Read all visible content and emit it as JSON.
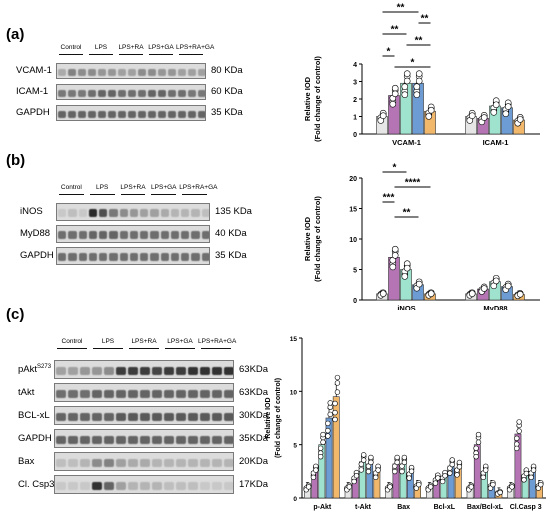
{
  "panels": {
    "a": {
      "label": "(a)",
      "conditions": [
        "Control",
        "LPS",
        "LPS+RA",
        "LPS+GA",
        "LPS+RA+GA"
      ],
      "blots": [
        {
          "name": "VCAM-1",
          "size": "80 KDa",
          "bands": [
            0.25,
            0.45,
            0.4,
            0.4,
            0.35,
            0.35,
            0.3,
            0.3,
            0.4,
            0.4,
            0.35,
            0.35,
            0.3,
            0.3,
            0.3
          ]
        },
        {
          "name": "ICAM-1",
          "size": "60 KDa",
          "bands": [
            0.5,
            0.5,
            0.5,
            0.55,
            0.6,
            0.6,
            0.55,
            0.55,
            0.55,
            0.6,
            0.6,
            0.55,
            0.55,
            0.5,
            0.5
          ]
        },
        {
          "name": "GAPDH",
          "size": "35 KDa",
          "bands": [
            0.6,
            0.6,
            0.6,
            0.6,
            0.6,
            0.6,
            0.6,
            0.6,
            0.6,
            0.6,
            0.6,
            0.6,
            0.6,
            0.6,
            0.6
          ]
        }
      ]
    },
    "b": {
      "label": "(b)",
      "conditions": [
        "Control",
        "LPS",
        "LPS+RA",
        "LPS+GA",
        "LPS+RA+GA"
      ],
      "blots": [
        {
          "name": "iNOS",
          "size": "135 KDa",
          "bands": [
            0.1,
            0.15,
            0.1,
            0.9,
            0.7,
            0.5,
            0.4,
            0.35,
            0.3,
            0.3,
            0.25,
            0.2,
            0.2,
            0.2,
            0.15
          ]
        },
        {
          "name": "MyD88",
          "size": "40 KDa",
          "bands": [
            0.55,
            0.55,
            0.55,
            0.6,
            0.6,
            0.6,
            0.55,
            0.55,
            0.55,
            0.55,
            0.55,
            0.55,
            0.55,
            0.55,
            0.55
          ]
        },
        {
          "name": "GAPDH",
          "size": "35 KDa",
          "bands": [
            0.55,
            0.55,
            0.55,
            0.55,
            0.55,
            0.55,
            0.55,
            0.55,
            0.55,
            0.55,
            0.55,
            0.55,
            0.55,
            0.55,
            0.55
          ]
        }
      ]
    },
    "c": {
      "label": "(c)",
      "conditions": [
        "Control",
        "LPS",
        "LPS+RA",
        "LPS+GA",
        "LPS+RA+GA"
      ],
      "blots": [
        {
          "name": "pAkt",
          "sup": "S273",
          "size": "63KDa",
          "bands": [
            0.3,
            0.3,
            0.35,
            0.35,
            0.4,
            0.8,
            0.8,
            0.8,
            0.75,
            0.8,
            0.8,
            0.85,
            0.85,
            0.85,
            0.85
          ]
        },
        {
          "name": "tAkt",
          "size": "63KDa",
          "bands": [
            0.55,
            0.55,
            0.55,
            0.6,
            0.6,
            0.6,
            0.6,
            0.6,
            0.6,
            0.6,
            0.6,
            0.6,
            0.6,
            0.6,
            0.6
          ]
        },
        {
          "name": "BCL-xL",
          "size": "30KDa",
          "bands": [
            0.6,
            0.6,
            0.6,
            0.6,
            0.6,
            0.65,
            0.65,
            0.65,
            0.65,
            0.65,
            0.65,
            0.65,
            0.65,
            0.65,
            0.65
          ]
        },
        {
          "name": "GAPDH",
          "size": "35KDa",
          "bands": [
            0.6,
            0.6,
            0.6,
            0.6,
            0.6,
            0.6,
            0.6,
            0.6,
            0.6,
            0.6,
            0.6,
            0.6,
            0.6,
            0.6,
            0.6
          ]
        },
        {
          "name": "Bax",
          "size": "20KDa",
          "bands": [
            0.15,
            0.15,
            0.2,
            0.4,
            0.45,
            0.3,
            0.25,
            0.25,
            0.2,
            0.2,
            0.2,
            0.2,
            0.2,
            0.2,
            0.2
          ]
        },
        {
          "name": "Cl. Csp3",
          "size": "17KDa",
          "bands": [
            0.1,
            0.1,
            0.1,
            0.85,
            0.6,
            0.3,
            0.2,
            0.2,
            0.2,
            0.15,
            0.15,
            0.15,
            0.1,
            0.1,
            0.1
          ]
        }
      ]
    }
  },
  "colors": {
    "groups": [
      "#e6e6e6",
      "#b575b5",
      "#9fe3cf",
      "#6d9bd3",
      "#f1b76a"
    ],
    "text": "#000000"
  },
  "chart_data": [
    {
      "type": "bar",
      "panel": "a",
      "ylabel": "Relative IOD\n(Fold change of control)",
      "categories": [
        "VCAM-1",
        "ICAM-1"
      ],
      "ylim": [
        0,
        4
      ],
      "yticks": [
        0,
        1,
        2,
        3,
        4
      ],
      "series": [
        {
          "values": [
            1.0,
            1.0
          ]
        },
        {
          "values": [
            2.2,
            0.9
          ]
        },
        {
          "values": [
            2.9,
            1.6
          ]
        },
        {
          "values": [
            2.9,
            1.5
          ]
        },
        {
          "values": [
            1.3,
            0.8
          ]
        }
      ],
      "significance": [
        {
          "label": "**",
          "from": 0,
          "to": 3,
          "cat": 0
        },
        {
          "label": "**",
          "from": 3,
          "to": 4,
          "cat": 0
        },
        {
          "label": "**",
          "from": 0,
          "to": 2,
          "cat": 0
        },
        {
          "label": "**",
          "from": 2,
          "to": 4,
          "cat": 0
        },
        {
          "label": "*",
          "from": 0,
          "to": 1,
          "cat": 0
        },
        {
          "label": "*",
          "from": 1,
          "to": 4,
          "cat": 0
        }
      ]
    },
    {
      "type": "bar",
      "panel": "b",
      "ylabel": "Relative IOD\n(Fold change of control)",
      "categories": [
        "iNOS",
        "MyD88"
      ],
      "ylim": [
        0,
        20
      ],
      "yticks": [
        0,
        5,
        10,
        15,
        20
      ],
      "series": [
        {
          "values": [
            1.0,
            1.0
          ]
        },
        {
          "values": [
            7.0,
            1.8
          ]
        },
        {
          "values": [
            5.0,
            3.0
          ]
        },
        {
          "values": [
            2.5,
            2.2
          ]
        },
        {
          "values": [
            1.0,
            0.9
          ]
        }
      ],
      "significance": [
        {
          "label": "*",
          "from": 0,
          "to": 2,
          "cat": 0
        },
        {
          "label": "****",
          "from": 1,
          "to": 4,
          "cat": 0
        },
        {
          "label": "***",
          "from": 0,
          "to": 1,
          "cat": 0
        },
        {
          "label": "**",
          "from": 1,
          "to": 3,
          "cat": 0
        }
      ]
    },
    {
      "type": "bar",
      "panel": "c",
      "ylabel": "Relative IOD\n(Fold change of control)",
      "categories": [
        "p-Akt",
        "t-Akt",
        "Bax",
        "Bcl-xL",
        "Bax/Bcl-xL",
        "Cl.Casp 3"
      ],
      "ylim": [
        0,
        15
      ],
      "yticks": [
        0,
        5,
        10,
        15
      ],
      "series": [
        {
          "values": [
            1.0,
            1.0,
            1.0,
            1.0,
            1.0,
            1.0
          ]
        },
        {
          "values": [
            2.5,
            2.0,
            3.2,
            1.8,
            5.0,
            6.0
          ]
        },
        {
          "values": [
            5.0,
            3.4,
            3.2,
            2.0,
            2.5,
            2.2
          ]
        },
        {
          "values": [
            7.5,
            3.2,
            2.4,
            3.0,
            1.2,
            2.5
          ]
        },
        {
          "values": [
            9.5,
            2.5,
            1.2,
            2.8,
            0.5,
            1.2
          ]
        }
      ]
    }
  ]
}
